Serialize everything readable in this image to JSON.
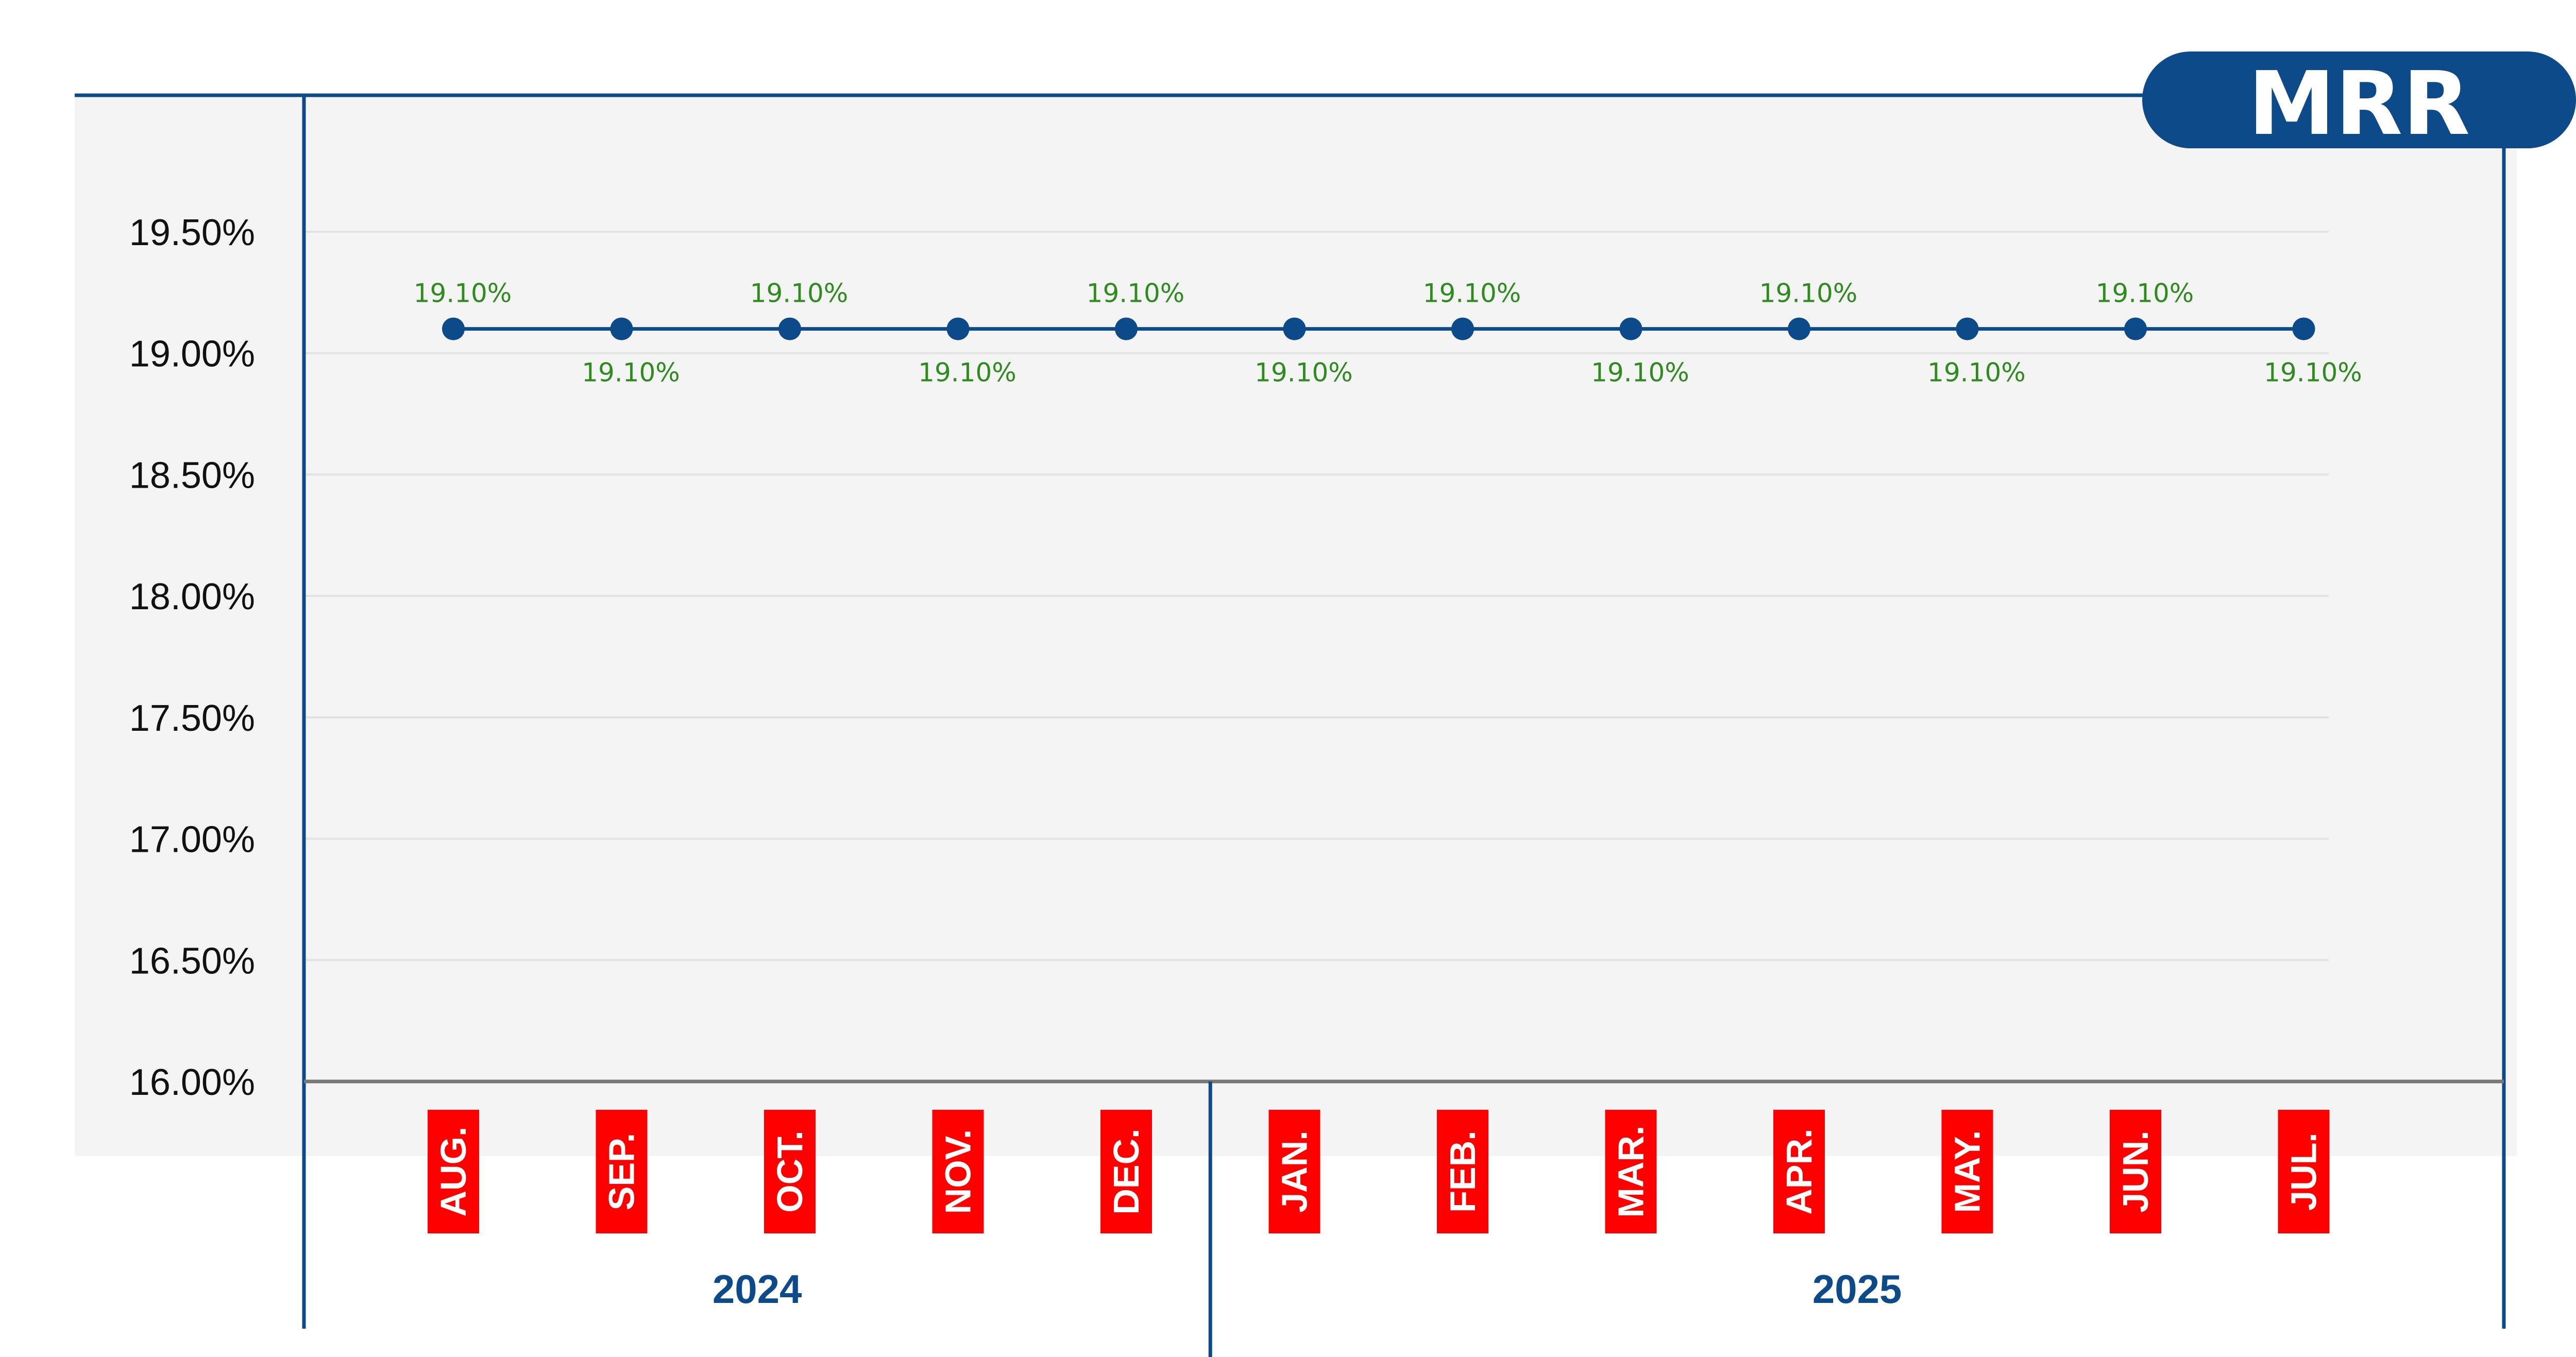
{
  "badge": {
    "label": "MRR"
  },
  "colors": {
    "navy": "#0d4a8a",
    "month_box": "#ff0000",
    "data_label": "#2e8b1e",
    "plot_bg": "#f4f4f4",
    "grid": "#e2e2e2",
    "baseline": "#777777"
  },
  "chart_data": {
    "type": "line",
    "title": "MRR",
    "categories": [
      "AUG.",
      "SEP.",
      "OCT.",
      "NOV.",
      "DEC.",
      "JAN.",
      "FEB.",
      "MAR.",
      "APR.",
      "MAY.",
      "JUN.",
      "JUL."
    ],
    "year_groups": [
      {
        "label": "2024",
        "months": [
          "AUG.",
          "SEP.",
          "OCT.",
          "NOV.",
          "DEC."
        ]
      },
      {
        "label": "2025",
        "months": [
          "JAN.",
          "FEB.",
          "MAR.",
          "APR.",
          "MAY.",
          "JUN.",
          "JUL."
        ]
      }
    ],
    "series": [
      {
        "values": [
          19.1,
          19.1,
          19.1,
          19.1,
          19.1,
          19.1,
          19.1,
          19.1,
          19.1,
          19.1,
          19.1,
          19.1
        ]
      }
    ],
    "data_labels": [
      "19.10%",
      "19.10%",
      "19.10%",
      "19.10%",
      "19.10%",
      "19.10%",
      "19.10%",
      "19.10%",
      "19.10%",
      "19.10%",
      "19.10%",
      "19.10%"
    ],
    "label_positions": [
      "above",
      "below",
      "above",
      "below",
      "above",
      "below",
      "above",
      "below",
      "above",
      "below",
      "above",
      "below"
    ],
    "ylim": [
      16.0,
      19.5
    ],
    "yticks": [
      19.5,
      19.0,
      18.5,
      18.0,
      17.5,
      17.0,
      16.5,
      16.0
    ],
    "ytick_labels": [
      "19.50%",
      "19.00%",
      "18.50%",
      "18.00%",
      "17.50%",
      "17.00%",
      "16.50%",
      "16.00%"
    ],
    "grid": true,
    "legend": "none",
    "xlabel": "",
    "ylabel": ""
  }
}
